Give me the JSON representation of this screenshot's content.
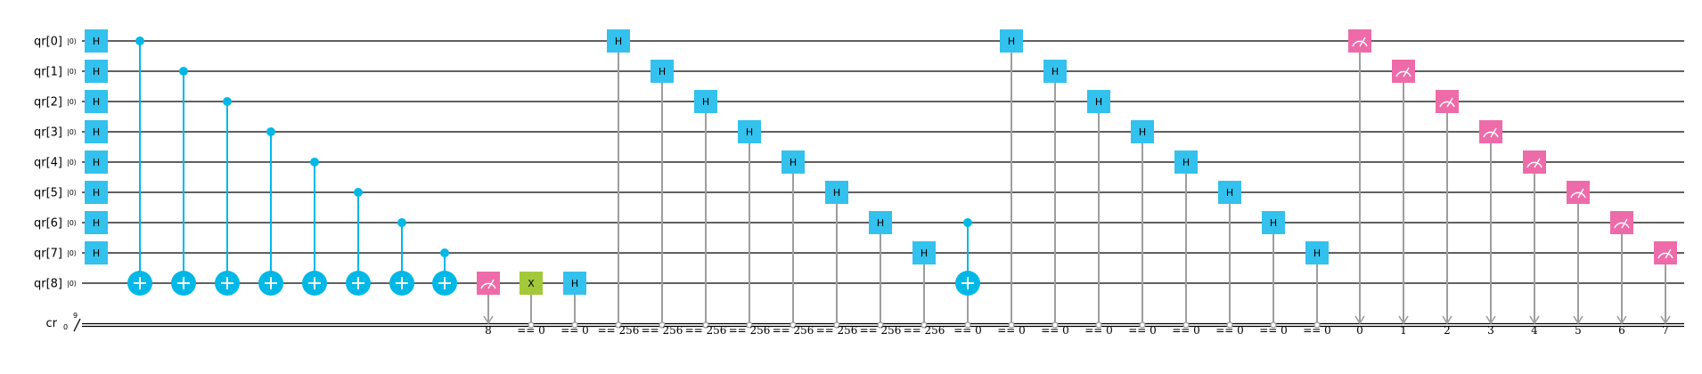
{
  "colors": {
    "h": "#33c1ed",
    "cnot": "#00b8e6",
    "measure": "#ee6ba9",
    "x": "#a3c93a",
    "classical": "#9e9e9e",
    "wire": "#000000"
  },
  "qubits": [
    {
      "label": "qr[0]",
      "init": "|0⟩"
    },
    {
      "label": "qr[1]",
      "init": "|0⟩"
    },
    {
      "label": "qr[2]",
      "init": "|0⟩"
    },
    {
      "label": "qr[3]",
      "init": "|0⟩"
    },
    {
      "label": "qr[4]",
      "init": "|0⟩"
    },
    {
      "label": "qr[5]",
      "init": "|0⟩"
    },
    {
      "label": "qr[6]",
      "init": "|0⟩"
    },
    {
      "label": "qr[7]",
      "init": "|0⟩"
    },
    {
      "label": "qr[8]",
      "init": "|0⟩"
    }
  ],
  "creg": {
    "label": "cr",
    "init": "0",
    "width": "9"
  },
  "gates": [
    {
      "type": "h",
      "qubit": 0,
      "col": 0,
      "label": "H"
    },
    {
      "type": "h",
      "qubit": 1,
      "col": 0,
      "label": "H"
    },
    {
      "type": "h",
      "qubit": 2,
      "col": 0,
      "label": "H"
    },
    {
      "type": "h",
      "qubit": 3,
      "col": 0,
      "label": "H"
    },
    {
      "type": "h",
      "qubit": 4,
      "col": 0,
      "label": "H"
    },
    {
      "type": "h",
      "qubit": 5,
      "col": 0,
      "label": "H"
    },
    {
      "type": "h",
      "qubit": 6,
      "col": 0,
      "label": "H"
    },
    {
      "type": "h",
      "qubit": 7,
      "col": 0,
      "label": "H"
    },
    {
      "type": "cx",
      "control": 0,
      "target": 8,
      "col": 1
    },
    {
      "type": "cx",
      "control": 1,
      "target": 8,
      "col": 2
    },
    {
      "type": "cx",
      "control": 2,
      "target": 8,
      "col": 3
    },
    {
      "type": "cx",
      "control": 3,
      "target": 8,
      "col": 4
    },
    {
      "type": "cx",
      "control": 4,
      "target": 8,
      "col": 5
    },
    {
      "type": "cx",
      "control": 5,
      "target": 8,
      "col": 6
    },
    {
      "type": "cx",
      "control": 6,
      "target": 8,
      "col": 7
    },
    {
      "type": "cx",
      "control": 7,
      "target": 8,
      "col": 8
    },
    {
      "type": "measure",
      "qubit": 8,
      "col": 9,
      "bit": "8"
    },
    {
      "type": "x",
      "qubit": 8,
      "col": 10,
      "label": "X",
      "cond": "== 0"
    },
    {
      "type": "h",
      "qubit": 8,
      "col": 11,
      "label": "H",
      "cond": "== 0"
    },
    {
      "type": "h",
      "qubit": 0,
      "col": 12,
      "label": "H",
      "cond": "== 256"
    },
    {
      "type": "h",
      "qubit": 1,
      "col": 13,
      "label": "H",
      "cond": "== 256"
    },
    {
      "type": "h",
      "qubit": 2,
      "col": 14,
      "label": "H",
      "cond": "== 256"
    },
    {
      "type": "h",
      "qubit": 3,
      "col": 15,
      "label": "H",
      "cond": "== 256"
    },
    {
      "type": "h",
      "qubit": 4,
      "col": 16,
      "label": "H",
      "cond": "== 256"
    },
    {
      "type": "h",
      "qubit": 5,
      "col": 17,
      "label": "H",
      "cond": "== 256"
    },
    {
      "type": "h",
      "qubit": 6,
      "col": 18,
      "label": "H",
      "cond": "== 256"
    },
    {
      "type": "h",
      "qubit": 7,
      "col": 19,
      "label": "H",
      "cond": "== 256"
    },
    {
      "type": "cx",
      "control": 6,
      "target": 8,
      "col": 20,
      "cond": "== 0"
    },
    {
      "type": "h",
      "qubit": 0,
      "col": 21,
      "label": "H",
      "cond": "== 0"
    },
    {
      "type": "h",
      "qubit": 1,
      "col": 22,
      "label": "H",
      "cond": "== 0"
    },
    {
      "type": "h",
      "qubit": 2,
      "col": 23,
      "label": "H",
      "cond": "== 0"
    },
    {
      "type": "h",
      "qubit": 3,
      "col": 24,
      "label": "H",
      "cond": "== 0"
    },
    {
      "type": "h",
      "qubit": 4,
      "col": 25,
      "label": "H",
      "cond": "== 0"
    },
    {
      "type": "h",
      "qubit": 5,
      "col": 26,
      "label": "H",
      "cond": "== 0"
    },
    {
      "type": "h",
      "qubit": 6,
      "col": 27,
      "label": "H",
      "cond": "== 0"
    },
    {
      "type": "h",
      "qubit": 7,
      "col": 28,
      "label": "H",
      "cond": "== 0"
    },
    {
      "type": "measure",
      "qubit": 0,
      "col": 29,
      "bit": "0"
    },
    {
      "type": "measure",
      "qubit": 1,
      "col": 30,
      "bit": "1"
    },
    {
      "type": "measure",
      "qubit": 2,
      "col": 31,
      "bit": "2"
    },
    {
      "type": "measure",
      "qubit": 3,
      "col": 32,
      "bit": "3"
    },
    {
      "type": "measure",
      "qubit": 4,
      "col": 33,
      "bit": "4"
    },
    {
      "type": "measure",
      "qubit": 5,
      "col": 34,
      "bit": "5"
    },
    {
      "type": "measure",
      "qubit": 6,
      "col": 35,
      "bit": "6"
    },
    {
      "type": "measure",
      "qubit": 7,
      "col": 36,
      "bit": "7"
    }
  ]
}
